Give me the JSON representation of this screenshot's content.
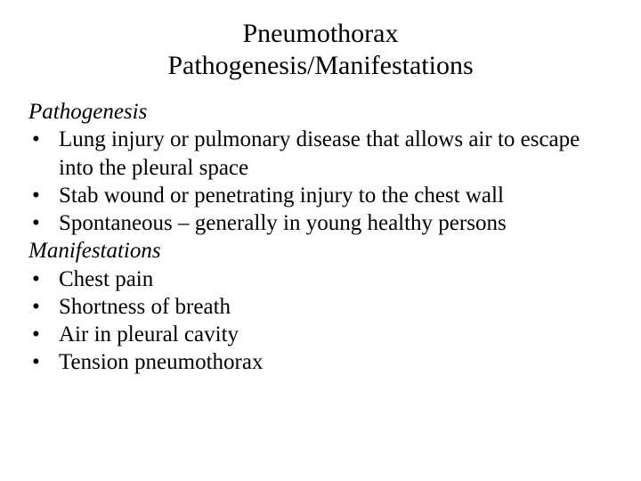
{
  "title_line1": "Pneumothorax",
  "title_line2": "Pathogenesis/Manifestations",
  "section1_heading": "Pathogenesis",
  "section1_items": {
    "0": "Lung injury or pulmonary disease that allows air to escape into the pleural space",
    "1": "Stab wound or penetrating injury to the chest wall",
    "2": "Spontaneous – generally in young healthy persons"
  },
  "section2_heading": "Manifestations",
  "section2_items": {
    "0": "Chest pain",
    "1": "Shortness of breath",
    "2": "Air in pleural cavity",
    "3": "Tension pneumothorax"
  },
  "colors": {
    "background": "#ffffff",
    "text": "#000000"
  },
  "typography": {
    "font_family": "Times New Roman",
    "title_fontsize_pt": 30,
    "body_fontsize_pt": 25,
    "section_heading_style": "italic"
  },
  "bullet_char": "•"
}
